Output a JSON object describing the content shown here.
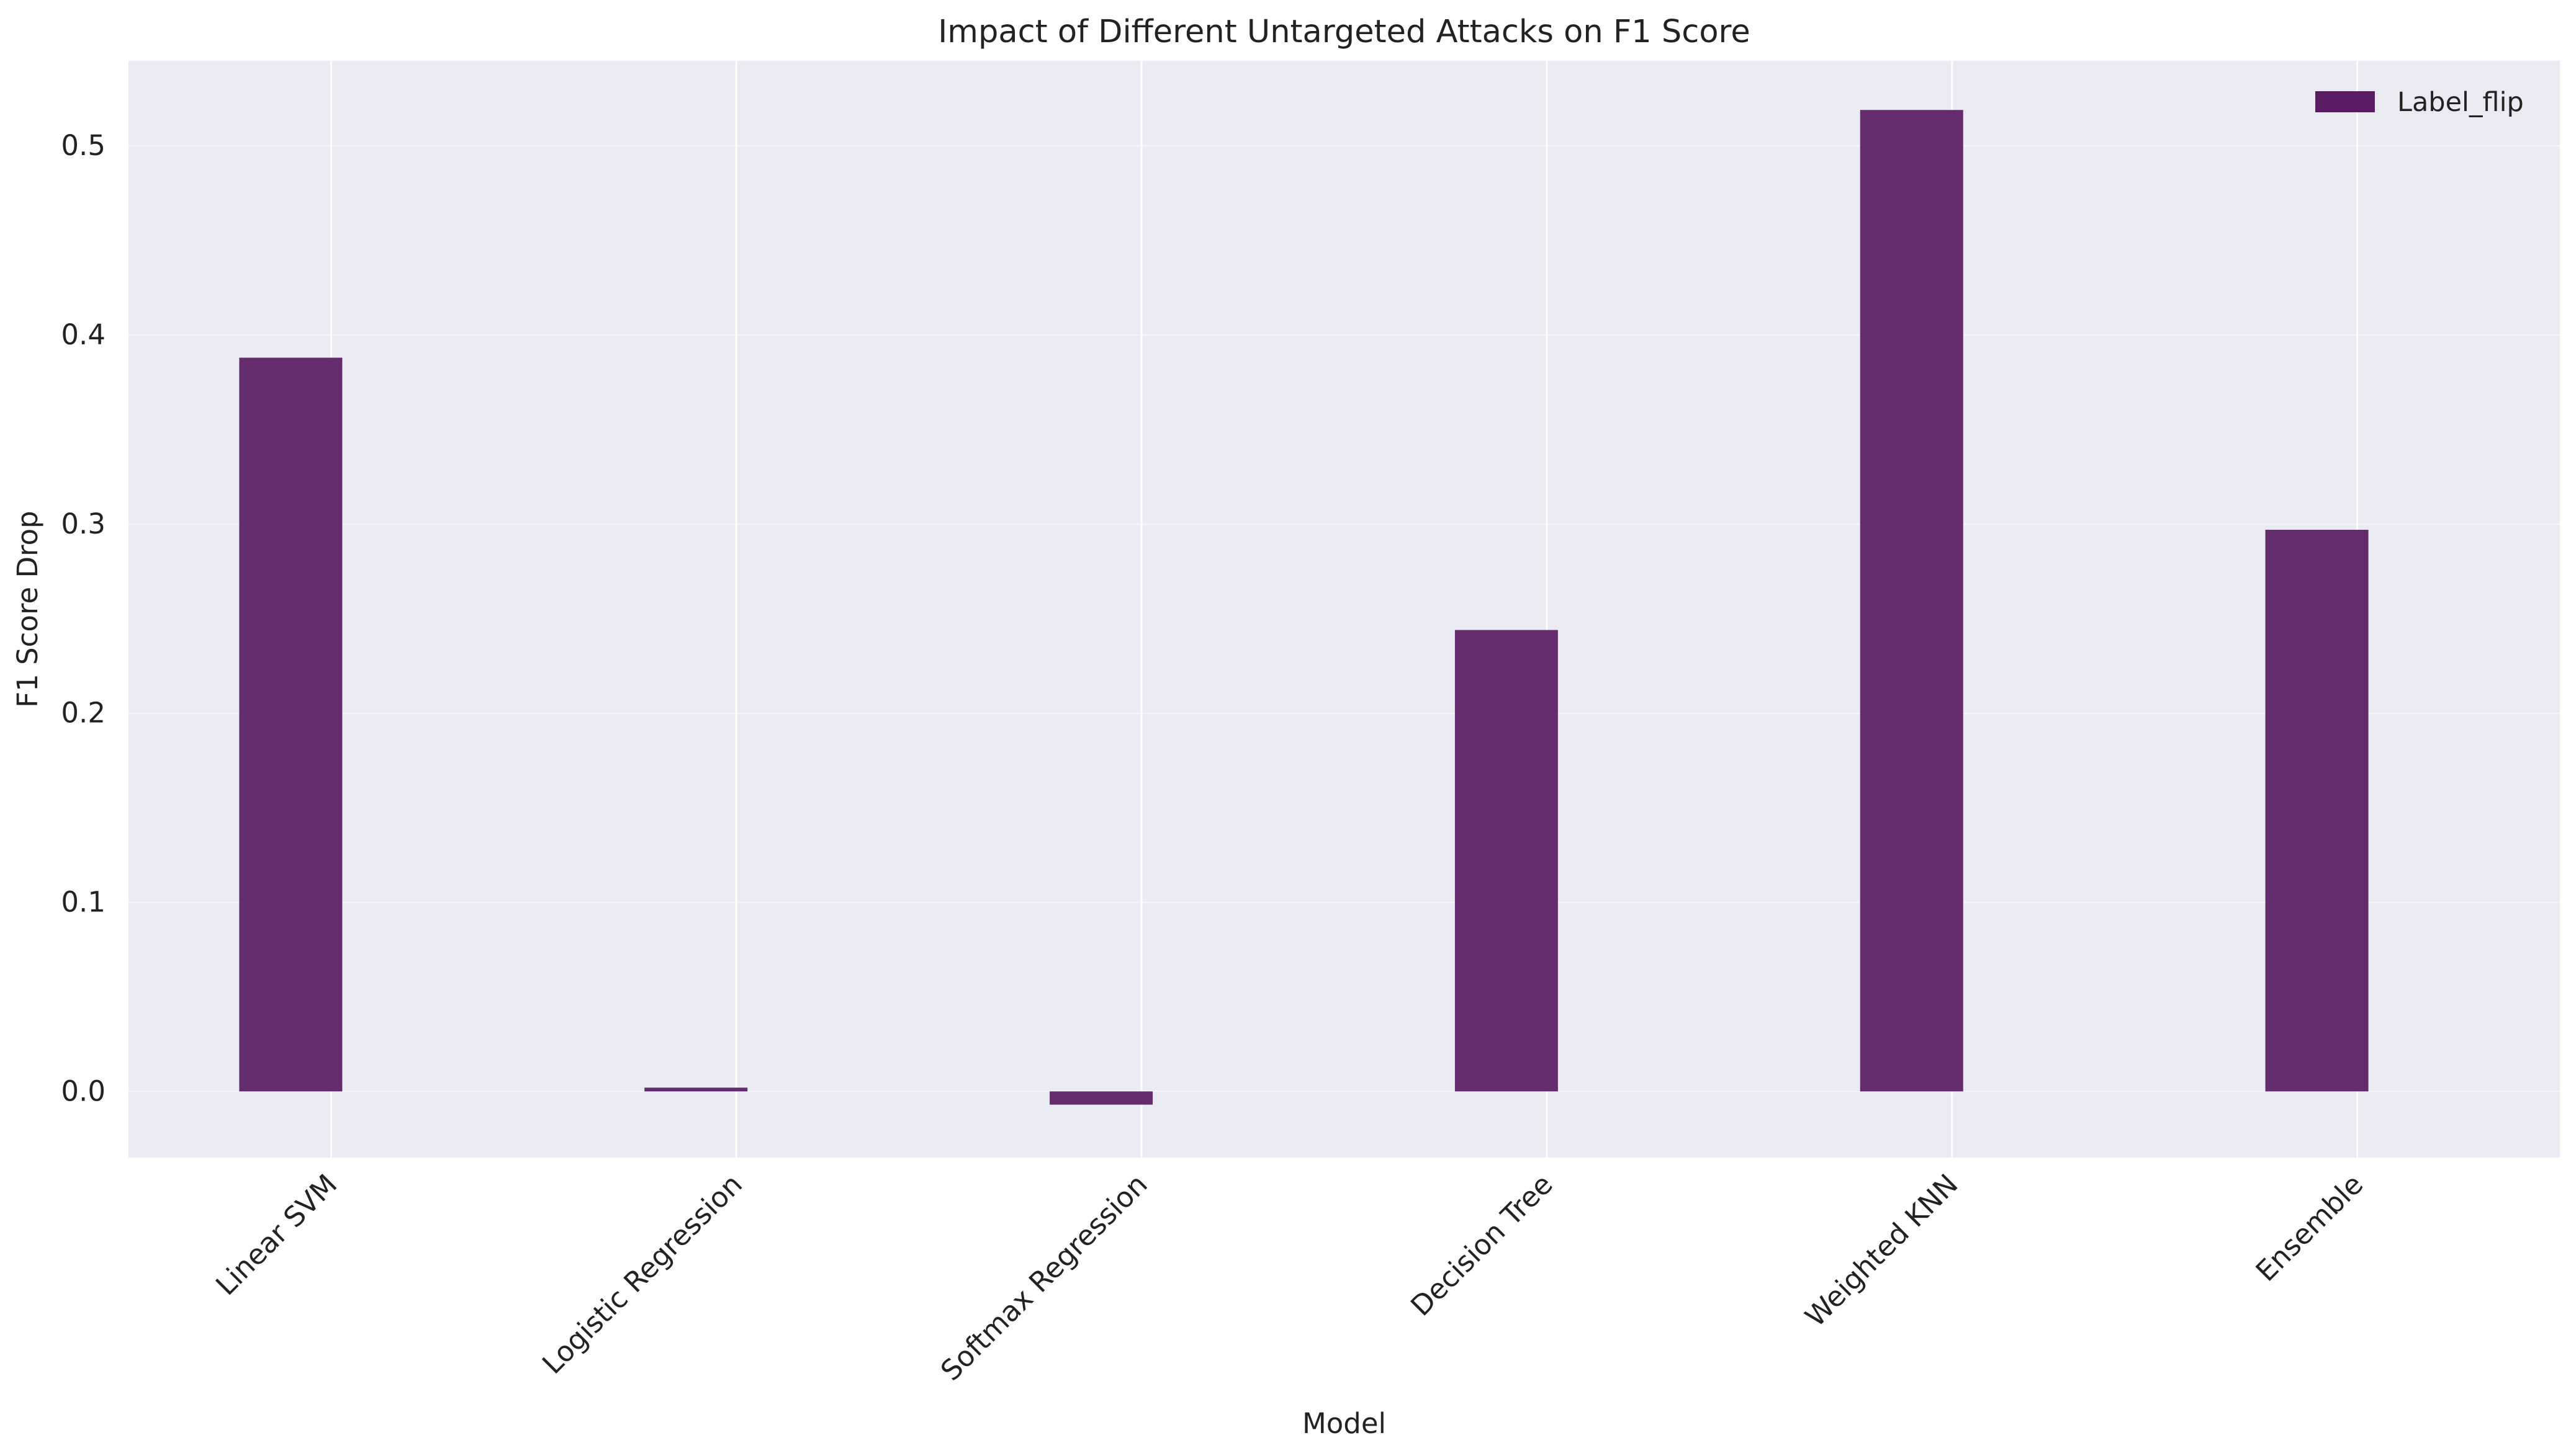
{
  "chart_data": {
    "type": "bar",
    "title": "Impact of Different Untargeted Attacks on F1 Score",
    "xlabel": "Model",
    "ylabel": "F1 Score Drop",
    "categories": [
      "Linear SVM",
      "Logistic Regression",
      "Softmax Regression",
      "Decision Tree",
      "Weighted KNN",
      "Ensemble"
    ],
    "series": [
      {
        "name": "Label_flip",
        "color": "#5a1d63",
        "values": [
          0.388,
          0.002,
          -0.007,
          0.244,
          0.519,
          0.297
        ]
      }
    ],
    "ylim": [
      -0.035,
      0.545
    ],
    "yticks": [
      "0.0",
      "0.1",
      "0.2",
      "0.3",
      "0.4",
      "0.5"
    ],
    "grid": true,
    "legend_position": "top-right",
    "background_color": "#eaeaf2"
  }
}
